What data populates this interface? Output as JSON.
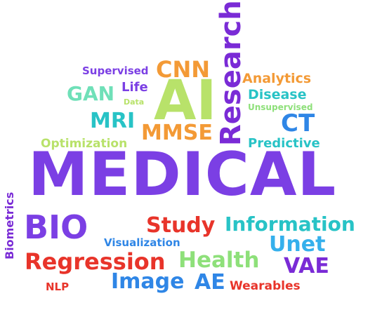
{
  "colors": {
    "purple": "#7b3fe4",
    "violet": "#7a2bd6",
    "orange": "#f39a36",
    "lime": "#b8e26a",
    "teal": "#28c3c6",
    "mint": "#6fe0b8",
    "red": "#e8342a",
    "blue": "#2f86e6",
    "green": "#8ee07a",
    "sky": "#35b0ec"
  },
  "words": {
    "medical": "MEDICAL",
    "ai": "AI",
    "research": "Research",
    "cnn": "CNN",
    "supervised": "Supervised",
    "gan": "GAN",
    "life": "Life",
    "data": "Data",
    "mri": "MRI",
    "mmse": "MMSE",
    "analytics": "Analytics",
    "disease": "Disease",
    "unsupervised": "Unsupervised",
    "ct": "CT",
    "optimization": "Optimization",
    "predictive": "Predictive",
    "biometrics": "Biometrics",
    "bio": "BIO",
    "study": "Study",
    "information": "Information",
    "visualization": "Visualization",
    "unet": "Unet",
    "regression": "Regression",
    "health": "Health",
    "vae": "VAE",
    "nlp": "NLP",
    "image": "Image",
    "ae": "AE",
    "wearables": "Wearables"
  }
}
